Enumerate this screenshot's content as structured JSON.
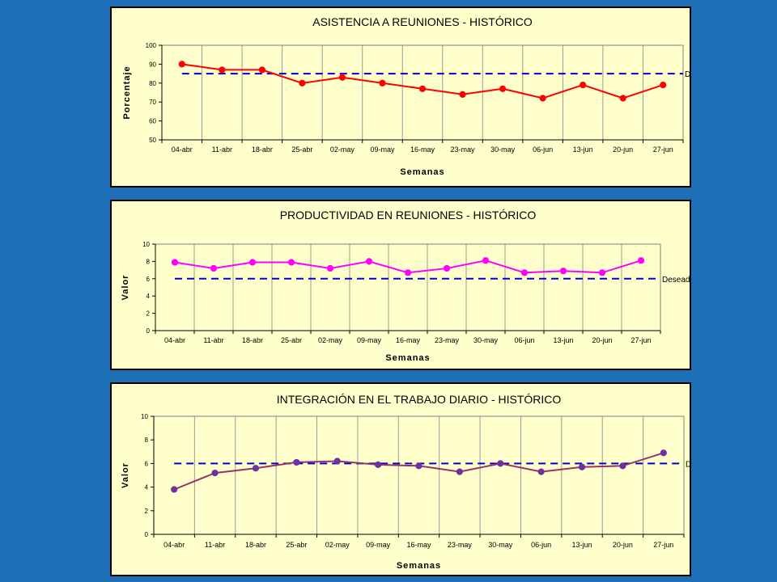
{
  "colors": {
    "background": "#1f6fb6",
    "panel": "#ffffcc",
    "target_line": "#0000cc"
  },
  "chart_data": [
    {
      "type": "line",
      "title": "ASISTENCIA A REUNIONES - HISTÓRICO",
      "xlabel": "Semanas",
      "ylabel": "Porcentaje",
      "categories": [
        "04-abr",
        "11-abr",
        "18-abr",
        "25-abr",
        "02-may",
        "09-may",
        "16-may",
        "23-may",
        "30-may",
        "06-jun",
        "13-jun",
        "20-jun",
        "27-jun"
      ],
      "ylim": [
        50,
        100
      ],
      "yticks": [
        50,
        60,
        70,
        80,
        90,
        100
      ],
      "grid": "vertical",
      "series": [
        {
          "values": [
            90,
            87,
            87,
            80,
            83,
            80,
            77,
            74,
            77,
            72,
            79,
            72,
            79
          ],
          "color": "#ff0000",
          "marker_color": "#ff0000"
        }
      ],
      "target": {
        "label": "Deseado",
        "value": 85
      }
    },
    {
      "type": "line",
      "title": "PRODUCTIVIDAD EN REUNIONES - HISTÓRICO",
      "xlabel": "Semanas",
      "ylabel": "Valor",
      "categories": [
        "04-abr",
        "11-abr",
        "18-abr",
        "25-abr",
        "02-may",
        "09-may",
        "16-may",
        "23-may",
        "30-may",
        "06-jun",
        "13-jun",
        "20-jun",
        "27-jun"
      ],
      "ylim": [
        0,
        10
      ],
      "yticks": [
        0,
        2,
        4,
        6,
        8,
        10
      ],
      "grid": "vertical",
      "series": [
        {
          "values": [
            7.9,
            7.2,
            7.9,
            7.9,
            7.2,
            8.0,
            6.7,
            7.2,
            8.1,
            6.7,
            6.9,
            6.7,
            8.1
          ],
          "color": "#ff00ff",
          "marker_color": "#ff00ff"
        }
      ],
      "target": {
        "label": "Deseado",
        "value": 6
      }
    },
    {
      "type": "line",
      "title": "INTEGRACIÓN EN EL TRABAJO DIARIO - HISTÓRICO",
      "xlabel": "Semanas",
      "ylabel": "Valor",
      "categories": [
        "04-abr",
        "11-abr",
        "18-abr",
        "25-abr",
        "02-may",
        "09-may",
        "16-may",
        "23-may",
        "30-may",
        "06-jun",
        "13-jun",
        "20-jun",
        "27-jun"
      ],
      "ylim": [
        0,
        10
      ],
      "yticks": [
        0,
        2,
        4,
        6,
        8,
        10
      ],
      "grid": "vertical",
      "series": [
        {
          "values": [
            3.8,
            5.2,
            5.6,
            6.1,
            6.2,
            5.9,
            5.8,
            5.3,
            6.0,
            5.3,
            5.7,
            5.8,
            6.9
          ],
          "color": "#993366",
          "marker_color": "#7030a0"
        }
      ],
      "target": {
        "label": "Deseado",
        "value": 6
      }
    }
  ]
}
